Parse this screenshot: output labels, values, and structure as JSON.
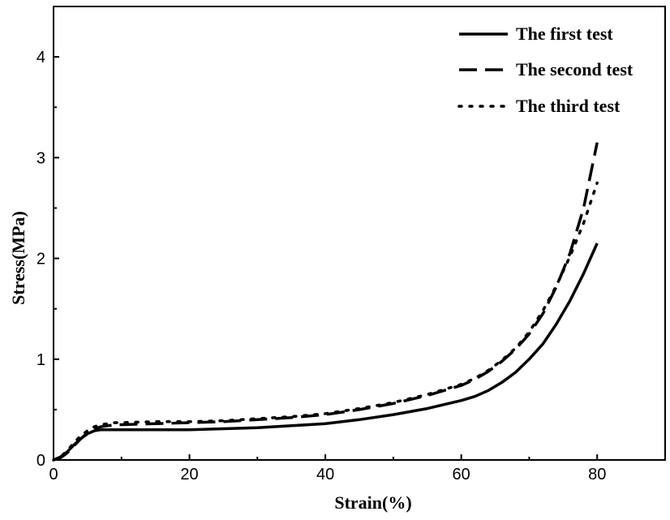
{
  "chart_data": {
    "type": "line",
    "title": "",
    "xlabel": "Strain(%)",
    "ylabel": "Stress(MPa)",
    "xlim": [
      0,
      90
    ],
    "ylim": [
      0,
      4.5
    ],
    "x_ticks": [
      0,
      20,
      40,
      60,
      80
    ],
    "y_ticks": [
      0,
      1,
      2,
      3,
      4
    ],
    "grid": false,
    "legend_position": "top-right",
    "series": [
      {
        "name": "The first test",
        "style": "solid",
        "x": [
          0,
          1,
          2,
          3,
          4,
          5,
          6,
          7,
          8,
          9,
          10,
          15,
          20,
          25,
          30,
          35,
          40,
          45,
          50,
          55,
          60,
          62,
          64,
          66,
          68,
          70,
          72,
          74,
          76,
          78,
          80
        ],
        "y": [
          0,
          0.03,
          0.08,
          0.15,
          0.21,
          0.26,
          0.29,
          0.3,
          0.3,
          0.3,
          0.3,
          0.3,
          0.3,
          0.31,
          0.32,
          0.34,
          0.36,
          0.4,
          0.45,
          0.51,
          0.59,
          0.63,
          0.69,
          0.77,
          0.87,
          1.0,
          1.15,
          1.35,
          1.58,
          1.85,
          2.15
        ]
      },
      {
        "name": "The second test",
        "style": "dashed",
        "x": [
          0,
          1,
          2,
          3,
          4,
          5,
          6,
          7,
          8,
          9,
          10,
          15,
          20,
          25,
          30,
          35,
          40,
          45,
          50,
          55,
          60,
          62,
          64,
          66,
          68,
          70,
          72,
          74,
          76,
          78,
          80
        ],
        "y": [
          0,
          0.02,
          0.07,
          0.14,
          0.21,
          0.27,
          0.31,
          0.33,
          0.34,
          0.35,
          0.35,
          0.36,
          0.37,
          0.38,
          0.4,
          0.42,
          0.45,
          0.5,
          0.56,
          0.64,
          0.74,
          0.8,
          0.88,
          0.98,
          1.1,
          1.25,
          1.45,
          1.72,
          2.05,
          2.5,
          3.15
        ]
      },
      {
        "name": "The third test",
        "style": "dotted",
        "x": [
          0,
          1,
          2,
          3,
          4,
          5,
          6,
          7,
          8,
          9,
          10,
          15,
          20,
          25,
          30,
          35,
          40,
          45,
          50,
          55,
          60,
          62,
          64,
          66,
          68,
          70,
          72,
          74,
          76,
          78,
          80
        ],
        "y": [
          0,
          0.03,
          0.09,
          0.17,
          0.24,
          0.29,
          0.33,
          0.35,
          0.36,
          0.37,
          0.37,
          0.38,
          0.38,
          0.39,
          0.41,
          0.43,
          0.46,
          0.51,
          0.57,
          0.65,
          0.75,
          0.81,
          0.89,
          0.99,
          1.11,
          1.27,
          1.48,
          1.73,
          2.02,
          2.35,
          2.75
        ]
      }
    ]
  }
}
